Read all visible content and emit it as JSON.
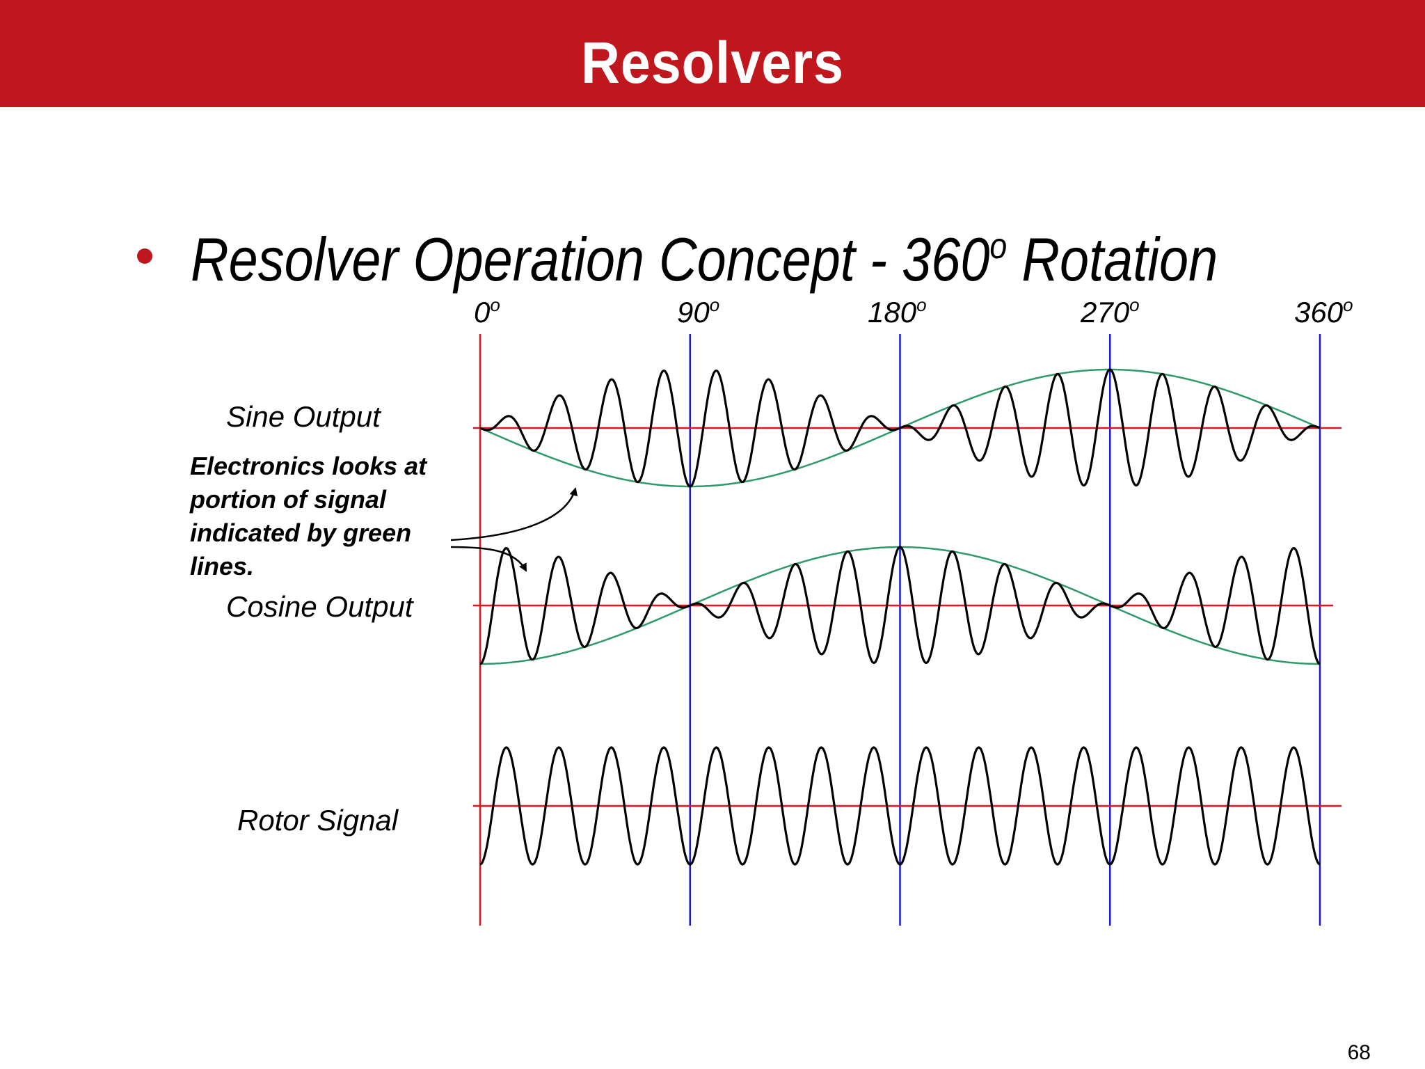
{
  "slide": {
    "title": "Resolvers",
    "heading_main": "Resolver Operation Concept - 360",
    "heading_sup": "o",
    "heading_rest": " Rotation",
    "page_number": "68"
  },
  "diagram": {
    "angle_labels": [
      {
        "value": "0",
        "sup": "o"
      },
      {
        "value": "90",
        "sup": "o"
      },
      {
        "value": "180",
        "sup": "o"
      },
      {
        "value": "270",
        "sup": "o"
      },
      {
        "value": "360",
        "sup": "o"
      }
    ],
    "signals": {
      "sine": "Sine Output",
      "cosine": "Cosine Output",
      "rotor": "Rotor Signal"
    },
    "note": "Electronics looks at portion of signal indicated by green lines.",
    "carrier_cycles": 16,
    "colors": {
      "header": "#c0171f",
      "baseline": "#e2141e",
      "marker": "#1a1ad6",
      "envelope": "#2e9a6a",
      "waveform": "#000000"
    }
  }
}
